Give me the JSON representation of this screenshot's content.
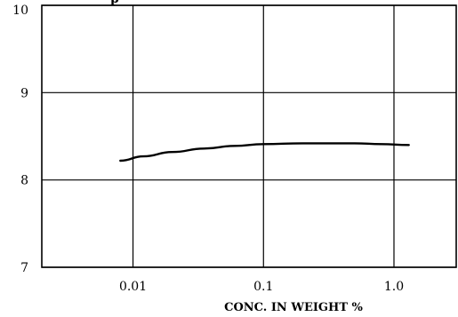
{
  "chart_data": {
    "type": "line",
    "title": "",
    "xlabel": "CONC. IN WEIGHT %",
    "ylabel": "",
    "top_label_fragment": "p",
    "x_scale": "log",
    "xlim": [
      0.002,
      3.0
    ],
    "ylim": [
      7,
      10
    ],
    "x_ticks": [
      0.01,
      0.1,
      1.0
    ],
    "x_tick_labels": [
      "0.01",
      "0.1",
      "1.0"
    ],
    "y_ticks": [
      7,
      8,
      9,
      10
    ],
    "y_tick_labels": [
      "7",
      "8",
      "9",
      "10"
    ],
    "grid": true,
    "series": [
      {
        "x": [
          0.008,
          0.012,
          0.02,
          0.035,
          0.06,
          0.1,
          0.2,
          0.3,
          0.5,
          0.8,
          1.3
        ],
        "y": [
          8.22,
          8.27,
          8.32,
          8.36,
          8.39,
          8.41,
          8.42,
          8.42,
          8.42,
          8.41,
          8.4
        ]
      }
    ]
  }
}
